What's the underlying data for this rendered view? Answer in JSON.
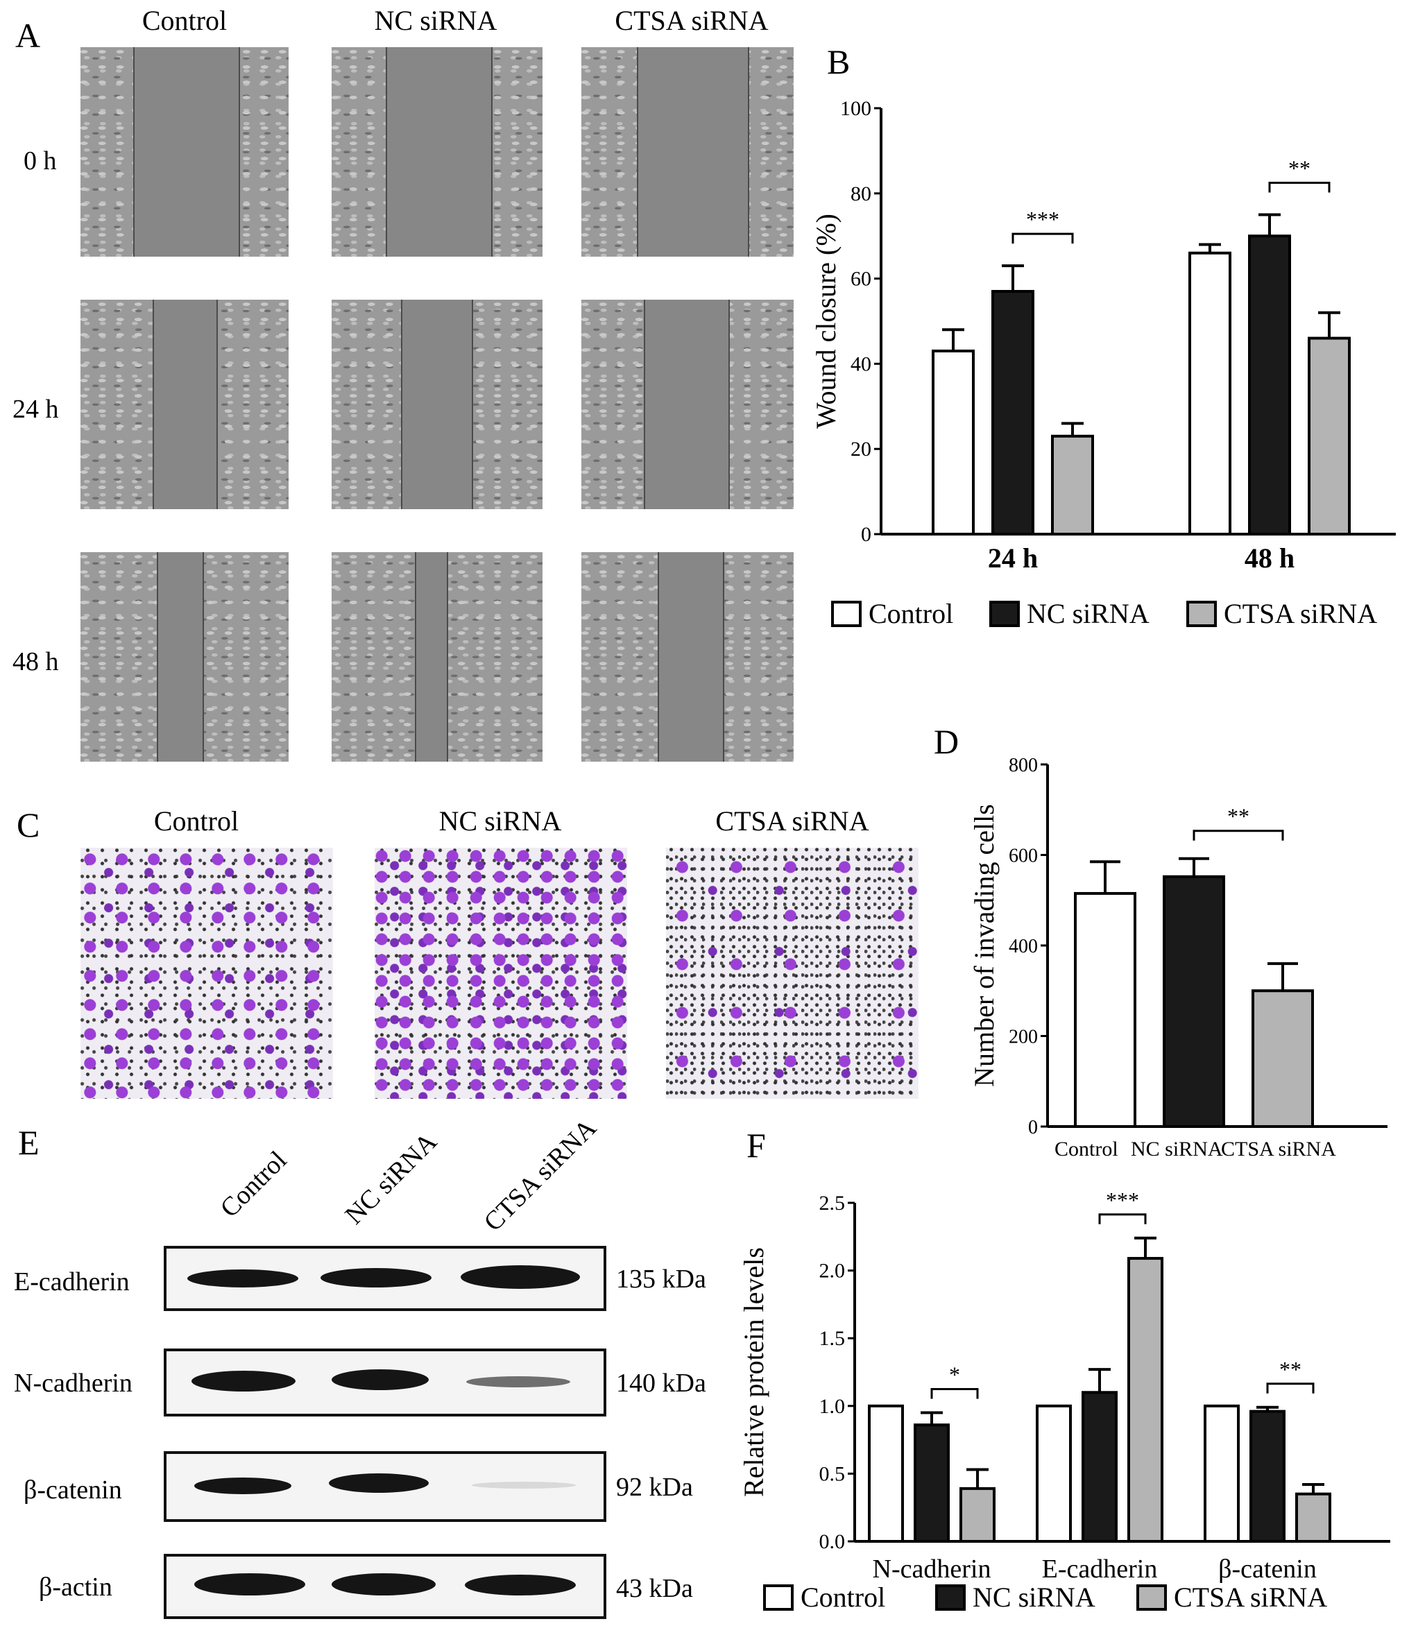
{
  "panels": {
    "A": "A",
    "B": "B",
    "C": "C",
    "D": "D",
    "E": "E",
    "F": "F"
  },
  "panel_a": {
    "columns": [
      "Control",
      "NC siRNA",
      "CTSA siRNA"
    ],
    "rows": [
      "0 h",
      "24 h",
      "48 h"
    ]
  },
  "panel_c": {
    "columns": [
      "Control",
      "NC siRNA",
      "CTSA siRNA"
    ]
  },
  "panel_e": {
    "lanes": [
      "Control",
      "NC siRNA",
      "CTSA siRNA"
    ],
    "blots": [
      {
        "name": "E-cadherin",
        "kda": "135 kDa"
      },
      {
        "name": "N-cadherin",
        "kda": "140 kDa"
      },
      {
        "name": "β-catenin",
        "kda": "92 kDa"
      },
      {
        "name": "β-actin",
        "kda": "43 kDa"
      }
    ]
  },
  "legend": [
    "Control",
    "NC siRNA",
    "CTSA siRNA"
  ],
  "colors": {
    "control": "#ffffff",
    "nc": "#1a1a1a",
    "ctsa": "#b4b4b4"
  },
  "chart_data": [
    {
      "panel": "B",
      "type": "bar",
      "categories": [
        "24 h",
        "48 h"
      ],
      "series": [
        {
          "name": "Control",
          "values": [
            43,
            66
          ],
          "errors": [
            5,
            2
          ]
        },
        {
          "name": "NC siRNA",
          "values": [
            57,
            70
          ],
          "errors": [
            6,
            5
          ]
        },
        {
          "name": "CTSA siRNA",
          "values": [
            23,
            46
          ],
          "errors": [
            3,
            6
          ]
        }
      ],
      "ylabel": "Wound closure (%)",
      "ylim": [
        0,
        100
      ],
      "yticks": [
        "0",
        "20",
        "40",
        "60",
        "80",
        "100"
      ],
      "significance": [
        {
          "category": "24 h",
          "label": "***"
        },
        {
          "category": "48 h",
          "label": "**"
        }
      ]
    },
    {
      "panel": "D",
      "type": "bar",
      "categories": [
        "Control",
        "NC siRNA",
        "CTSA siRNA"
      ],
      "values": [
        515,
        552,
        300
      ],
      "errors": [
        70,
        40,
        60
      ],
      "ylabel": "Number of invading cells",
      "ylim": [
        0,
        800
      ],
      "yticks": [
        "0",
        "200",
        "400",
        "600",
        "800"
      ],
      "significance": [
        {
          "label": "**"
        }
      ]
    },
    {
      "panel": "F",
      "type": "bar",
      "categories": [
        "N-cadherin",
        "E-cadherin",
        "β-catenin"
      ],
      "series": [
        {
          "name": "Control",
          "values": [
            1.0,
            1.0,
            1.0
          ],
          "errors": [
            0,
            0,
            0
          ]
        },
        {
          "name": "NC siRNA",
          "values": [
            0.86,
            1.1,
            0.96
          ],
          "errors": [
            0.09,
            0.17,
            0.03
          ]
        },
        {
          "name": "CTSA siRNA",
          "values": [
            0.39,
            2.09,
            0.35
          ],
          "errors": [
            0.14,
            0.15,
            0.07
          ]
        }
      ],
      "ylabel": "Relative protein levels",
      "ylim": [
        0,
        2.5
      ],
      "yticks": [
        "0.0",
        "0.5",
        "1.0",
        "1.5",
        "2.0",
        "2.5"
      ],
      "significance": [
        {
          "category": "N-cadherin",
          "label": "*"
        },
        {
          "category": "E-cadherin",
          "label": "***"
        },
        {
          "category": "β-catenin",
          "label": "**"
        }
      ]
    }
  ]
}
